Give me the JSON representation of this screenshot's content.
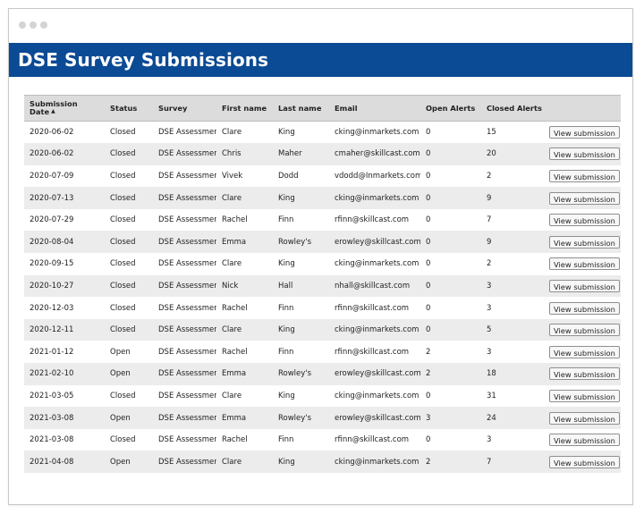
{
  "window": {
    "title": "DSE Survey Submissions"
  },
  "table": {
    "headers": {
      "submission_date": "Submission Date",
      "sort_indicator": "▲",
      "status": "Status",
      "survey": "Survey",
      "first_name": "First name",
      "last_name": "Last name",
      "email": "Email",
      "open_alerts": "Open Alerts",
      "closed_alerts": "Closed Alerts",
      "action": ""
    },
    "view_label": "View submission",
    "rows": [
      {
        "date": "2020-06-02",
        "status": "Closed",
        "survey": "DSE Assessment",
        "first": "Clare",
        "last": "King",
        "email": "cking@inmarkets.com",
        "open": "0",
        "closed": "15"
      },
      {
        "date": "2020-06-02",
        "status": "Closed",
        "survey": "DSE Assessment",
        "first": "Chris",
        "last": "Maher",
        "email": "cmaher@skillcast.com",
        "open": "0",
        "closed": "20"
      },
      {
        "date": "2020-07-09",
        "status": "Closed",
        "survey": "DSE Assessment",
        "first": "Vivek",
        "last": "Dodd",
        "email": "vdodd@Inmarkets.com",
        "open": "0",
        "closed": "2"
      },
      {
        "date": "2020-07-13",
        "status": "Closed",
        "survey": "DSE Assessment",
        "first": "Clare",
        "last": "King",
        "email": "cking@inmarkets.com",
        "open": "0",
        "closed": "9"
      },
      {
        "date": "2020-07-29",
        "status": "Closed",
        "survey": "DSE Assessment",
        "first": "Rachel",
        "last": "Finn",
        "email": "rfinn@skillcast.com",
        "open": "0",
        "closed": "7"
      },
      {
        "date": "2020-08-04",
        "status": "Closed",
        "survey": "DSE Assessment",
        "first": "Emma",
        "last": "Rowley's",
        "email": "erowley@skillcast.com",
        "open": "0",
        "closed": "9"
      },
      {
        "date": "2020-09-15",
        "status": "Closed",
        "survey": "DSE Assessment",
        "first": "Clare",
        "last": "King",
        "email": "cking@inmarkets.com",
        "open": "0",
        "closed": "2"
      },
      {
        "date": "2020-10-27",
        "status": "Closed",
        "survey": "DSE Assessment",
        "first": "Nick",
        "last": "Hall",
        "email": "nhall@skillcast.com",
        "open": "0",
        "closed": "3"
      },
      {
        "date": "2020-12-03",
        "status": "Closed",
        "survey": "DSE Assessment",
        "first": "Rachel",
        "last": "Finn",
        "email": "rfinn@skillcast.com",
        "open": "0",
        "closed": "3"
      },
      {
        "date": "2020-12-11",
        "status": "Closed",
        "survey": "DSE Assessment",
        "first": "Clare",
        "last": "King",
        "email": "cking@inmarkets.com",
        "open": "0",
        "closed": "5"
      },
      {
        "date": "2021-01-12",
        "status": "Open",
        "survey": "DSE Assessment",
        "first": "Rachel",
        "last": "Finn",
        "email": "rfinn@skillcast.com",
        "open": "2",
        "closed": "3"
      },
      {
        "date": "2021-02-10",
        "status": "Open",
        "survey": "DSE Assessment",
        "first": "Emma",
        "last": "Rowley's",
        "email": "erowley@skillcast.com",
        "open": "2",
        "closed": "18"
      },
      {
        "date": "2021-03-05",
        "status": "Closed",
        "survey": "DSE Assessment",
        "first": "Clare",
        "last": "King",
        "email": "cking@inmarkets.com",
        "open": "0",
        "closed": "31"
      },
      {
        "date": "2021-03-08",
        "status": "Open",
        "survey": "DSE Assessment",
        "first": "Emma",
        "last": "Rowley's",
        "email": "erowley@skillcast.com",
        "open": "3",
        "closed": "24"
      },
      {
        "date": "2021-03-08",
        "status": "Closed",
        "survey": "DSE Assessment",
        "first": "Rachel",
        "last": "Finn",
        "email": "rfinn@skillcast.com",
        "open": "0",
        "closed": "3"
      },
      {
        "date": "2021-04-08",
        "status": "Open",
        "survey": "DSE Assessment",
        "first": "Clare",
        "last": "King",
        "email": "cking@inmarkets.com",
        "open": "2",
        "closed": "7"
      }
    ]
  },
  "colors": {
    "title_bar": "#0b4a94",
    "header_bg": "#dcdcdc",
    "stripe_bg": "#ececec"
  }
}
